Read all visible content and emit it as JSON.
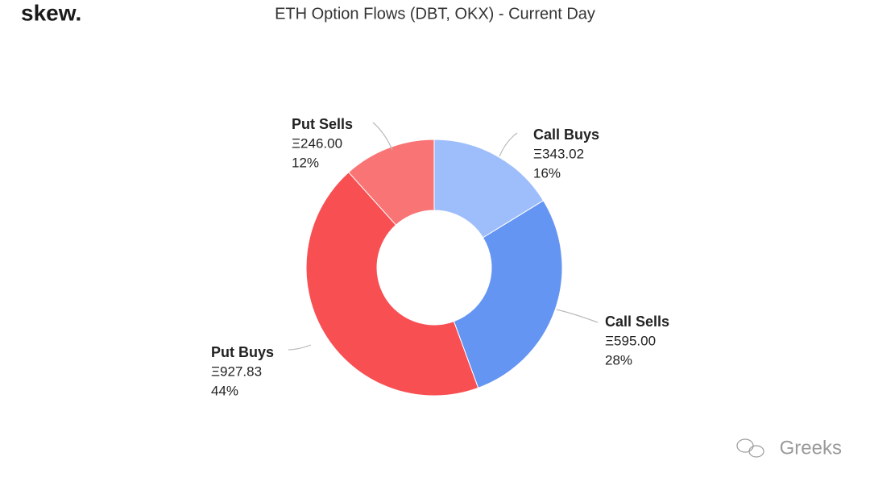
{
  "brand": "skew.",
  "watermark": "Greeks",
  "chart_data": {
    "type": "donut",
    "title": "ETH Option Flows (DBT, OKX) - Current Day",
    "categories": [
      "Call Buys",
      "Call Sells",
      "Put Buys",
      "Put Sells"
    ],
    "values": [
      343.02,
      595.0,
      927.83,
      246.0
    ],
    "value_labels": [
      "Ξ343.02",
      "Ξ595.00",
      "Ξ927.83",
      "Ξ246.00"
    ],
    "percents": [
      16,
      28,
      44,
      12
    ],
    "percent_labels": [
      "16%",
      "28%",
      "44%",
      "12%"
    ],
    "colors": [
      "#9dbdfb",
      "#6495f2",
      "#f84f53",
      "#f97475"
    ]
  }
}
